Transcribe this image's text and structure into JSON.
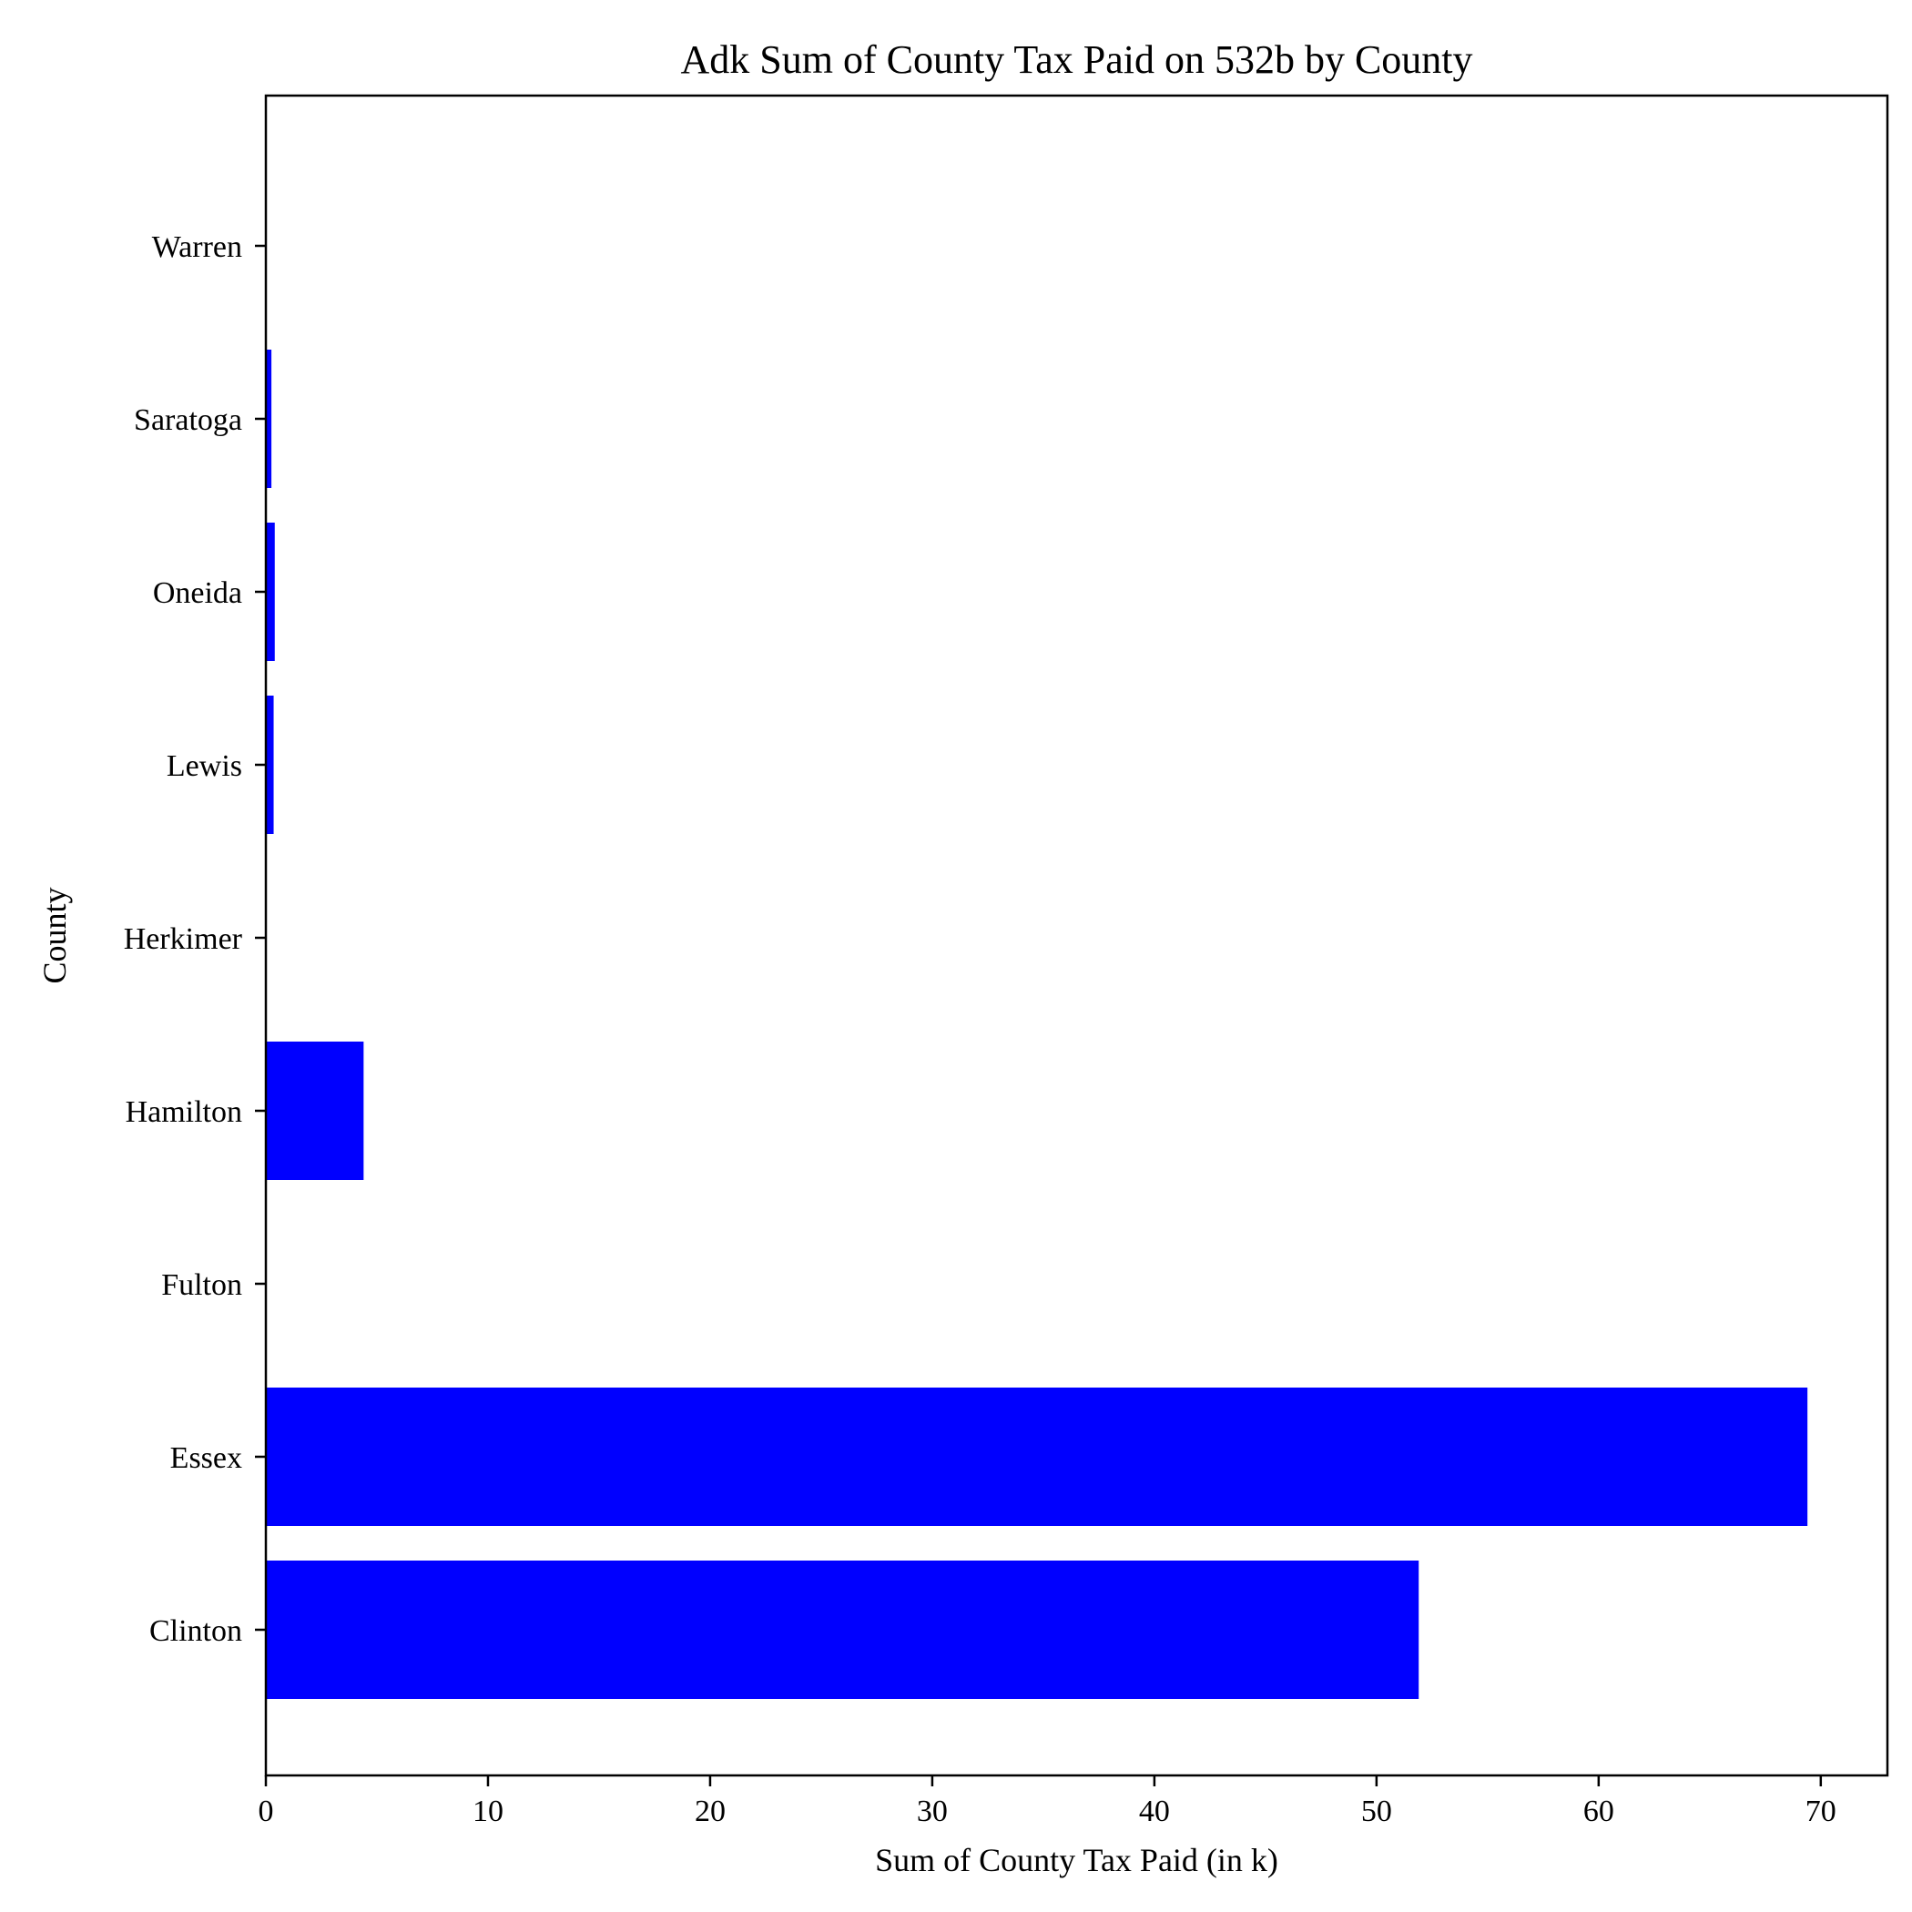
{
  "chart_data": {
    "type": "bar",
    "orientation": "horizontal",
    "title": "Adk Sum of County Tax Paid on 532b by County",
    "xlabel": "Sum of County Tax Paid (in k)",
    "ylabel": "County",
    "categories": [
      "Clinton",
      "Essex",
      "Fulton",
      "Hamilton",
      "Herkimer",
      "Lewis",
      "Oneida",
      "Saratoga",
      "Warren"
    ],
    "values": [
      51.9,
      69.4,
      0.0,
      4.4,
      0.0,
      0.35,
      0.4,
      0.25,
      0.0
    ],
    "xlim": [
      0,
      73
    ],
    "xticks": [
      0,
      10,
      20,
      30,
      40,
      50,
      60,
      70
    ],
    "bar_color": "#0000ff",
    "grid": false
  }
}
